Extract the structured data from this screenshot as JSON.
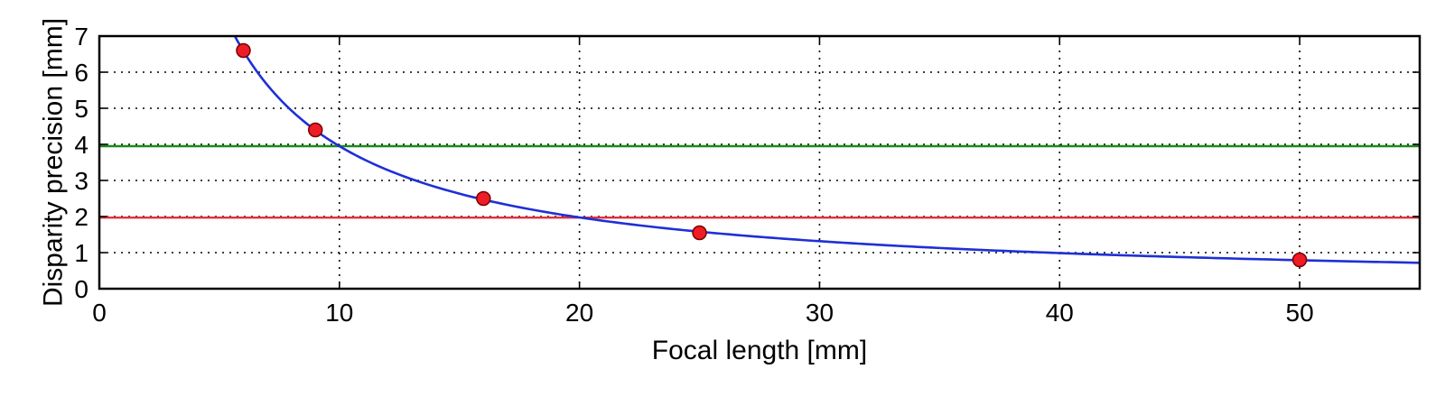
{
  "chart_data": {
    "type": "scatter",
    "title": "",
    "xlabel": "Focal length [mm]",
    "ylabel": "Disparity precision [mm]",
    "xlim": [
      0,
      55
    ],
    "ylim": [
      0,
      7
    ],
    "xticks": [
      0,
      10,
      20,
      30,
      40,
      50
    ],
    "yticks": [
      0,
      1,
      2,
      3,
      4,
      5,
      6,
      7
    ],
    "grid": true,
    "legend": "none",
    "series": [
      {
        "kind": "points",
        "color": "#ee1c25",
        "x": [
          6,
          9,
          16,
          25,
          50
        ],
        "y": [
          6.6,
          4.4,
          2.5,
          1.55,
          0.8
        ]
      },
      {
        "kind": "curve",
        "color": "#1f2fd6",
        "equation": "y = 39.5 / x",
        "x_range": [
          5.3,
          55
        ]
      },
      {
        "kind": "hline",
        "color": "#1a8a1a",
        "y": 3.95
      },
      {
        "kind": "hline",
        "color": "#e0303a",
        "y": 1.97
      }
    ]
  }
}
